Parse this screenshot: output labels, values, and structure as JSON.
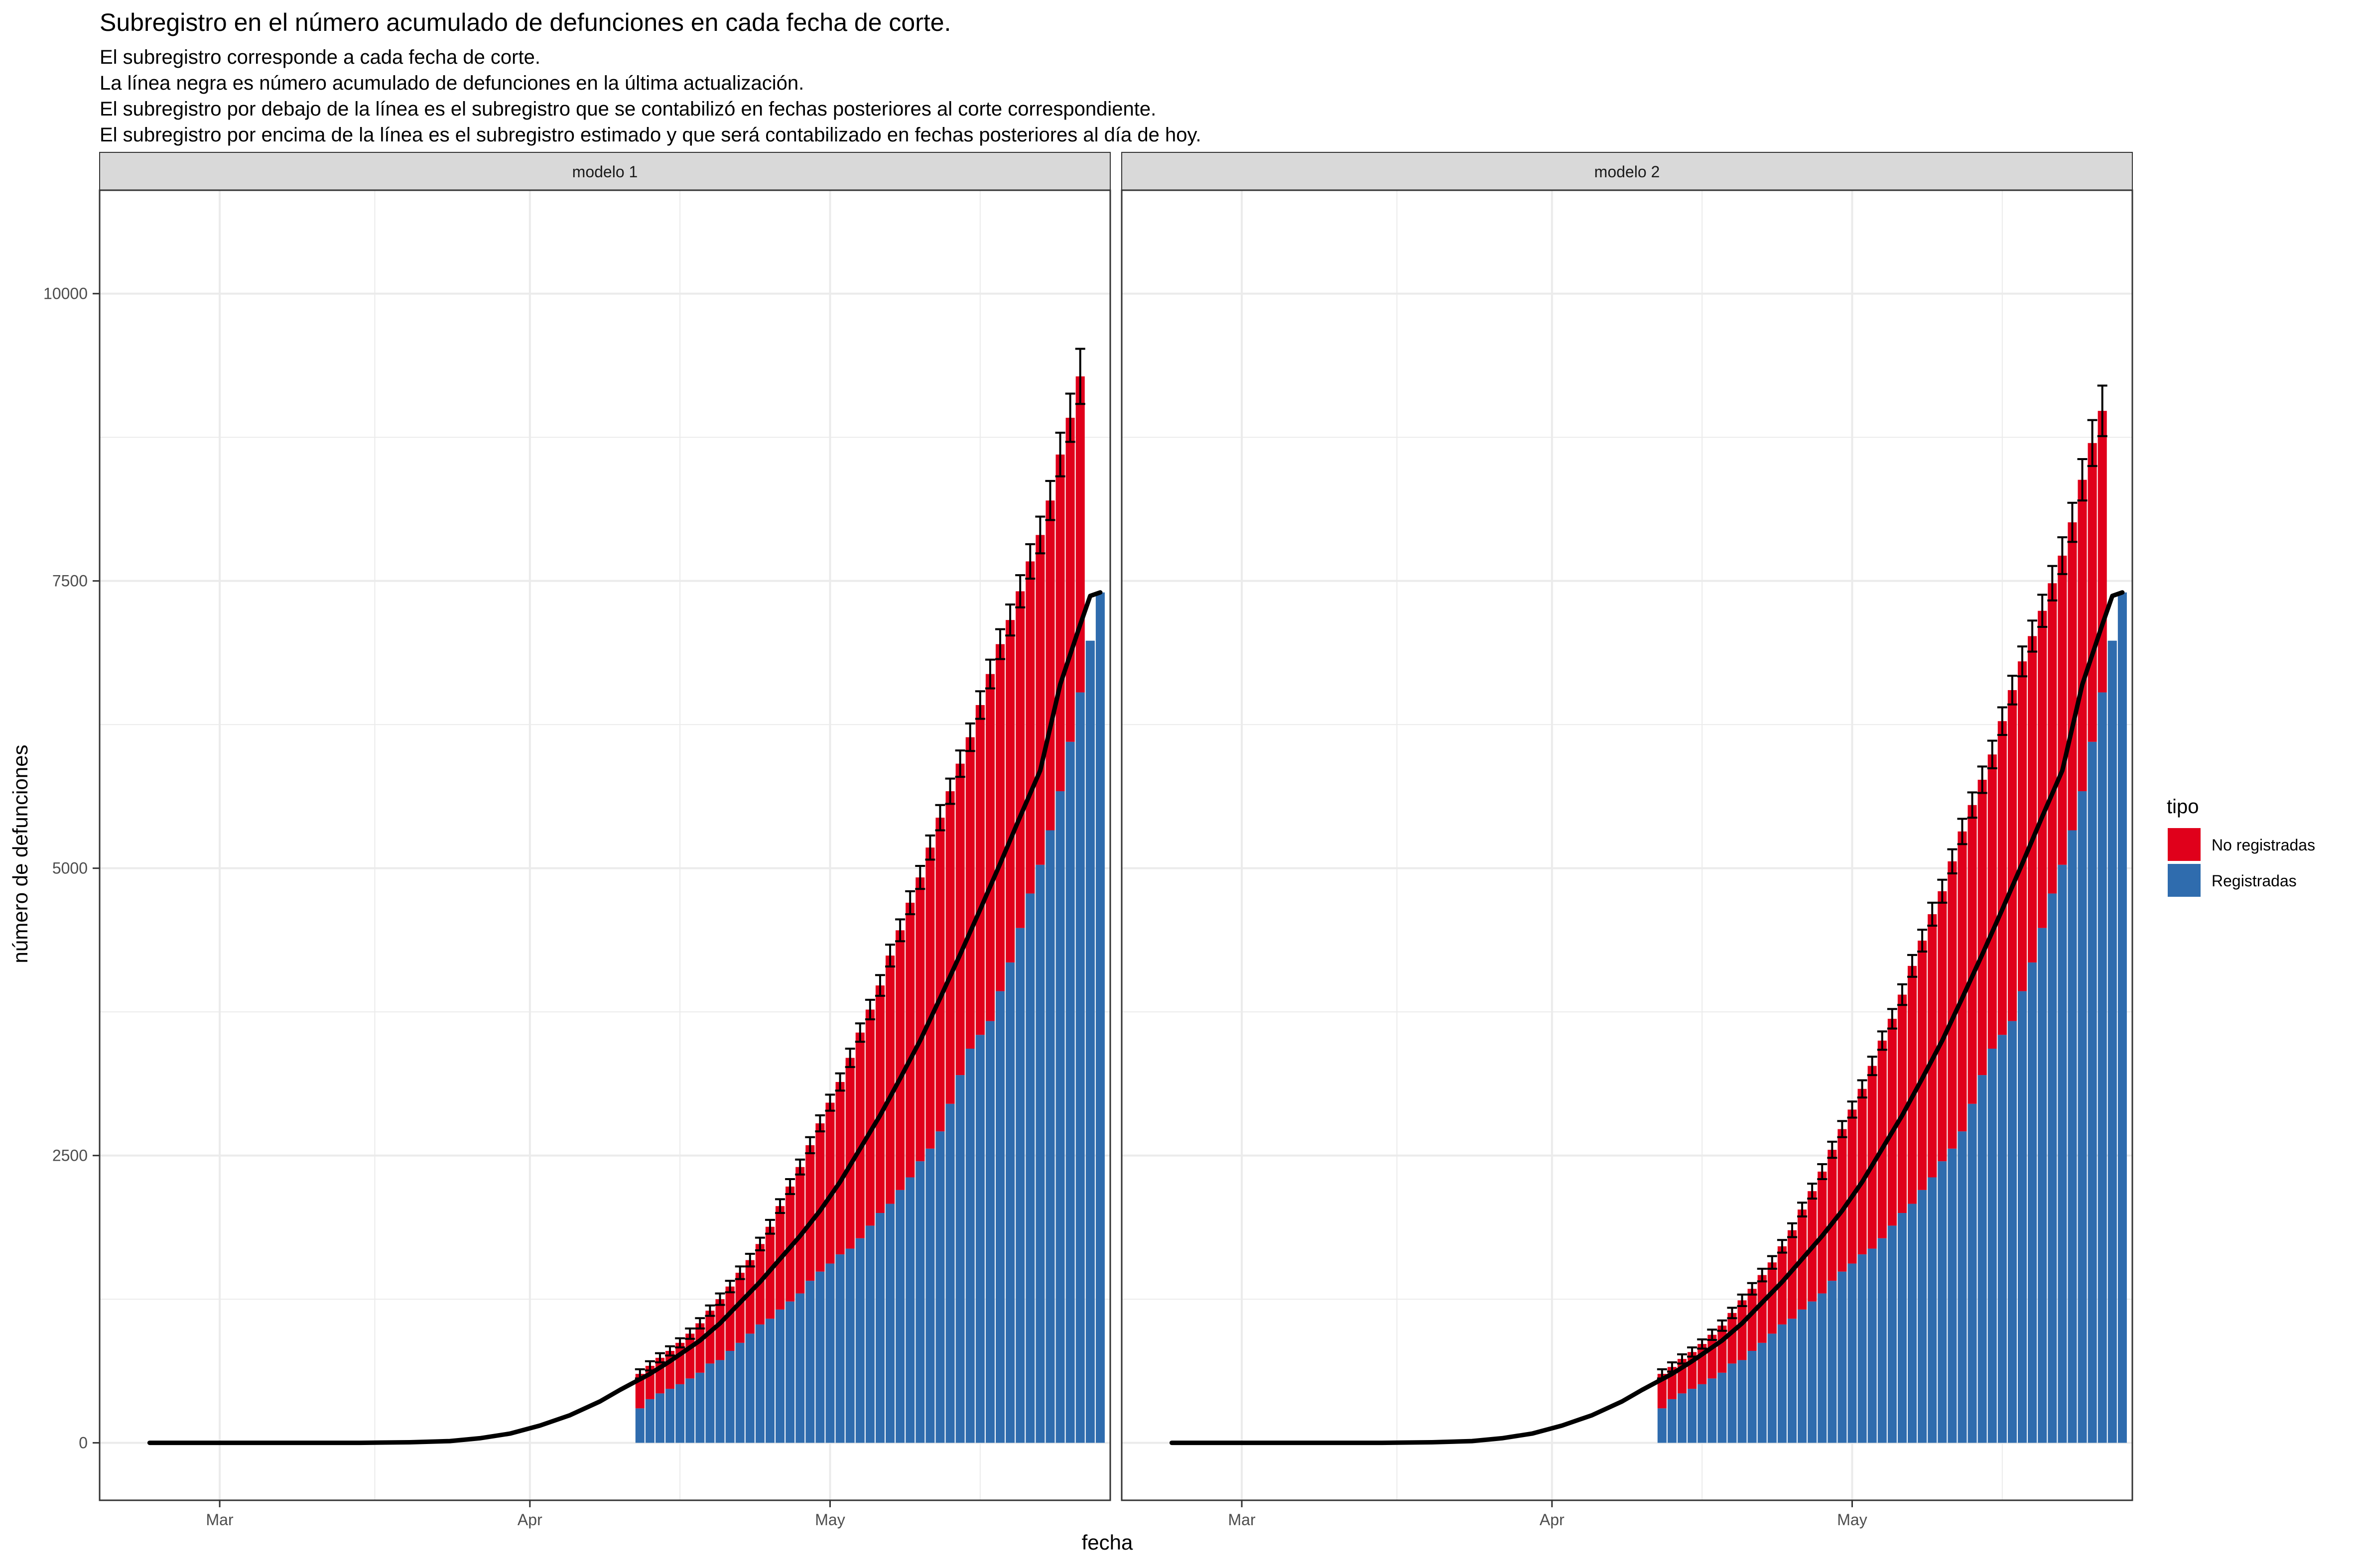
{
  "chart_data": {
    "type": "bar",
    "title": "Subregistro en el número acumulado de defunciones en cada fecha de corte.",
    "subtitle": [
      "El subregistro corresponde a cada fecha de corte.",
      "La línea negra es número acumulado de defunciones en la última actualización.",
      "El subregistro por debajo de la línea es el subregistro que se contabilizó en fechas posteriores al corte correspondiente.",
      "El subregistro por encima de la línea es el subregistro estimado y que será contabilizado en fechas posteriores al día de hoy."
    ],
    "xlabel": "fecha",
    "ylabel": "número de defunciones",
    "x_axis": {
      "start_date": "2020-02-18",
      "end_date": "2020-05-29",
      "ticks": [
        {
          "date": "2020-03-01",
          "label": "Mar"
        },
        {
          "date": "2020-04-01",
          "label": "Apr"
        },
        {
          "date": "2020-05-01",
          "label": "May"
        }
      ]
    },
    "y_axis": {
      "ylim": [
        -500,
        10900
      ],
      "ticks": [
        0,
        2500,
        5000,
        7500,
        10000
      ]
    },
    "grid": true,
    "legend": {
      "title": "tipo",
      "position": "right",
      "items": [
        {
          "label": "No registradas",
          "color": "#E0001B"
        },
        {
          "label": "Registradas",
          "color": "#2F6CAE"
        }
      ]
    },
    "colors": {
      "registradas": "#2F6CAE",
      "no_registradas": "#E0001B",
      "line": "#000000",
      "strip": "#D9D9D9",
      "grid": "#EBEBEB"
    },
    "line_dates": [
      "2020-02-23",
      "2020-03-01",
      "2020-03-08",
      "2020-03-15",
      "2020-03-20",
      "2020-03-24",
      "2020-03-27",
      "2020-03-30",
      "2020-04-02",
      "2020-04-05",
      "2020-04-08",
      "2020-04-10",
      "2020-04-13",
      "2020-04-15",
      "2020-04-18",
      "2020-04-20",
      "2020-04-22",
      "2020-04-24",
      "2020-04-26",
      "2020-04-28",
      "2020-04-30",
      "2020-05-02",
      "2020-05-04",
      "2020-05-06",
      "2020-05-08",
      "2020-05-10",
      "2020-05-12",
      "2020-05-14",
      "2020-05-16",
      "2020-05-18",
      "2020-05-20",
      "2020-05-22",
      "2020-05-24",
      "2020-05-26",
      "2020-05-27",
      "2020-05-28"
    ],
    "line_values": [
      0,
      0,
      0,
      0,
      5,
      15,
      40,
      80,
      150,
      240,
      360,
      460,
      600,
      710,
      890,
      1040,
      1220,
      1400,
      1600,
      1800,
      2020,
      2270,
      2560,
      2850,
      3170,
      3500,
      3870,
      4250,
      4640,
      5040,
      5450,
      5850,
      6600,
      7120,
      7370,
      7400
    ],
    "panels": [
      {
        "name": "modelo 1",
        "bars": {
          "dates": [
            "2020-04-12",
            "2020-04-13",
            "2020-04-14",
            "2020-04-15",
            "2020-04-16",
            "2020-04-17",
            "2020-04-18",
            "2020-04-19",
            "2020-04-20",
            "2020-04-21",
            "2020-04-22",
            "2020-04-23",
            "2020-04-24",
            "2020-04-25",
            "2020-04-26",
            "2020-04-27",
            "2020-04-28",
            "2020-04-29",
            "2020-04-30",
            "2020-05-01",
            "2020-05-02",
            "2020-05-03",
            "2020-05-04",
            "2020-05-05",
            "2020-05-06",
            "2020-05-07",
            "2020-05-08",
            "2020-05-09",
            "2020-05-10",
            "2020-05-11",
            "2020-05-12",
            "2020-05-13",
            "2020-05-14",
            "2020-05-15",
            "2020-05-16",
            "2020-05-17",
            "2020-05-18",
            "2020-05-19",
            "2020-05-20",
            "2020-05-21",
            "2020-05-22",
            "2020-05-23",
            "2020-05-24",
            "2020-05-25",
            "2020-05-26",
            "2020-05-27",
            "2020-05-28"
          ],
          "registradas": [
            300,
            380,
            430,
            470,
            510,
            560,
            610,
            690,
            720,
            800,
            870,
            950,
            1030,
            1080,
            1160,
            1230,
            1300,
            1410,
            1490,
            1560,
            1640,
            1690,
            1780,
            1890,
            2000,
            2080,
            2200,
            2310,
            2450,
            2560,
            2710,
            2950,
            3200,
            3430,
            3550,
            3670,
            3930,
            4180,
            4480,
            4780,
            5030,
            5330,
            5670,
            6100,
            6530,
            6980,
            7400
          ],
          "no_registradas": [
            300,
            290,
            310,
            330,
            360,
            390,
            430,
            460,
            530,
            560,
            610,
            640,
            700,
            800,
            900,
            1000,
            1100,
            1180,
            1290,
            1400,
            1500,
            1660,
            1790,
            1880,
            1980,
            2160,
            2260,
            2390,
            2470,
            2620,
            2730,
            2720,
            2710,
            2710,
            2870,
            3020,
            3020,
            2980,
            2930,
            2890,
            2870,
            2870,
            2930,
            2820,
            2750,
            null,
            null
          ],
          "error": [
            40,
            40,
            40,
            40,
            40,
            45,
            45,
            45,
            50,
            50,
            55,
            55,
            55,
            60,
            60,
            65,
            65,
            70,
            70,
            70,
            75,
            80,
            80,
            85,
            90,
            95,
            95,
            100,
            100,
            105,
            110,
            110,
            115,
            120,
            120,
            125,
            130,
            135,
            140,
            150,
            160,
            170,
            190,
            210,
            240,
            null,
            null
          ]
        }
      },
      {
        "name": "modelo 2",
        "bars": {
          "dates": [
            "2020-04-12",
            "2020-04-13",
            "2020-04-14",
            "2020-04-15",
            "2020-04-16",
            "2020-04-17",
            "2020-04-18",
            "2020-04-19",
            "2020-04-20",
            "2020-04-21",
            "2020-04-22",
            "2020-04-23",
            "2020-04-24",
            "2020-04-25",
            "2020-04-26",
            "2020-04-27",
            "2020-04-28",
            "2020-04-29",
            "2020-04-30",
            "2020-05-01",
            "2020-05-02",
            "2020-05-03",
            "2020-05-04",
            "2020-05-05",
            "2020-05-06",
            "2020-05-07",
            "2020-05-08",
            "2020-05-09",
            "2020-05-10",
            "2020-05-11",
            "2020-05-12",
            "2020-05-13",
            "2020-05-14",
            "2020-05-15",
            "2020-05-16",
            "2020-05-17",
            "2020-05-18",
            "2020-05-19",
            "2020-05-20",
            "2020-05-21",
            "2020-05-22",
            "2020-05-23",
            "2020-05-24",
            "2020-05-25",
            "2020-05-26",
            "2020-05-27",
            "2020-05-28"
          ],
          "registradas": [
            300,
            380,
            430,
            470,
            510,
            560,
            610,
            690,
            720,
            800,
            870,
            950,
            1030,
            1080,
            1160,
            1230,
            1300,
            1410,
            1490,
            1560,
            1640,
            1690,
            1780,
            1890,
            2000,
            2080,
            2200,
            2310,
            2450,
            2560,
            2710,
            2950,
            3200,
            3430,
            3550,
            3670,
            3930,
            4180,
            4480,
            4780,
            5030,
            5330,
            5670,
            6100,
            6530,
            6980,
            7400
          ],
          "no_registradas": [
            300,
            280,
            300,
            320,
            350,
            380,
            410,
            440,
            520,
            540,
            590,
            620,
            680,
            770,
            870,
            960,
            1060,
            1140,
            1240,
            1340,
            1440,
            1590,
            1720,
            1800,
            1900,
            2070,
            2170,
            2290,
            2350,
            2500,
            2610,
            2600,
            2570,
            2560,
            2730,
            2880,
            2870,
            2840,
            2760,
            2700,
            2690,
            2680,
            2710,
            2600,
            2450,
            null,
            null
          ],
          "error": [
            40,
            40,
            40,
            40,
            40,
            45,
            45,
            45,
            50,
            50,
            55,
            55,
            55,
            60,
            60,
            65,
            65,
            70,
            70,
            70,
            75,
            80,
            80,
            85,
            90,
            95,
            95,
            100,
            100,
            105,
            110,
            110,
            115,
            120,
            120,
            125,
            130,
            135,
            140,
            150,
            160,
            170,
            180,
            200,
            220,
            null,
            null
          ]
        }
      }
    ]
  }
}
